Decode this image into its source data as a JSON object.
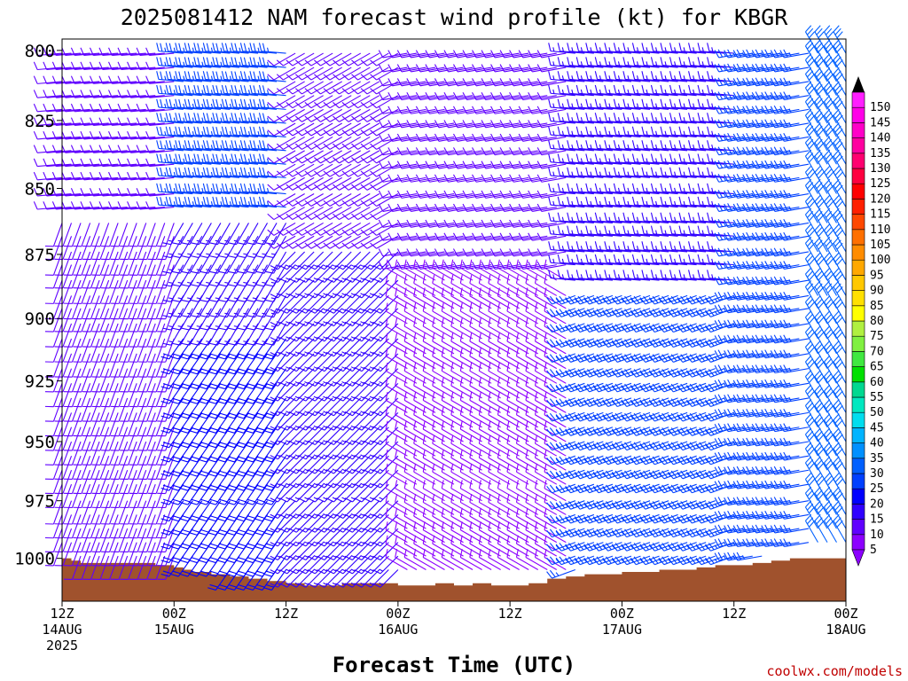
{
  "chart_data": {
    "type": "wind-barb time-height profile",
    "title": "2025081412 NAM forecast wind profile (kt) for KBGR",
    "xlabel": "Forecast Time (UTC)",
    "ylabel": "",
    "credit": "coolwx.com/models",
    "x_ticks": [
      {
        "label": "12Z",
        "date": "14AUG",
        "year": "2025",
        "hour": 0
      },
      {
        "label": "00Z",
        "date": "15AUG",
        "year": "",
        "hour": 12
      },
      {
        "label": "12Z",
        "date": "",
        "year": "",
        "hour": 24
      },
      {
        "label": "00Z",
        "date": "16AUG",
        "year": "",
        "hour": 36
      },
      {
        "label": "12Z",
        "date": "",
        "year": "",
        "hour": 48
      },
      {
        "label": "00Z",
        "date": "17AUG",
        "year": "",
        "hour": 60
      },
      {
        "label": "12Z",
        "date": "",
        "year": "",
        "hour": 72
      },
      {
        "label": "00Z",
        "date": "18AUG",
        "year": "",
        "hour": 84
      }
    ],
    "xlim_hours": [
      0,
      84
    ],
    "y_ticks": [
      800,
      825,
      850,
      875,
      900,
      925,
      950,
      975,
      1000
    ],
    "ylim_hpa": [
      796,
      1019
    ],
    "y_scale": "log-pressure",
    "colorbar": {
      "unit": "kt",
      "levels": [
        5,
        10,
        15,
        20,
        25,
        30,
        35,
        40,
        45,
        50,
        55,
        60,
        65,
        70,
        75,
        80,
        85,
        90,
        95,
        100,
        105,
        110,
        115,
        120,
        125,
        130,
        135,
        140,
        145,
        150
      ],
      "colors": [
        "#8c00ff",
        "#6000ff",
        "#3000ff",
        "#0000ff",
        "#0040ff",
        "#0060ff",
        "#0090ff",
        "#00b4ff",
        "#00ddee",
        "#00e8c0",
        "#00d890",
        "#00e000",
        "#40e840",
        "#80f040",
        "#b0f040",
        "#ffff00",
        "#ffe000",
        "#ffc800",
        "#ffa800",
        "#ff8c00",
        "#ff7000",
        "#ff4800",
        "#ff2000",
        "#ff0000",
        "#ff0040",
        "#ff0070",
        "#ff00a0",
        "#ff00c8",
        "#ff00e8",
        "#ff20ff"
      ],
      "position": "right"
    },
    "terrain": {
      "color": "#a0522d",
      "surface_pressure_hpa": [
        {
          "hour": 0,
          "p": 1000
        },
        {
          "hour": 1,
          "p": 1001
        },
        {
          "hour": 2,
          "p": 1002
        },
        {
          "hour": 4,
          "p": 1002
        },
        {
          "hour": 6,
          "p": 1002
        },
        {
          "hour": 8,
          "p": 1002
        },
        {
          "hour": 10,
          "p": 1003
        },
        {
          "hour": 12,
          "p": 1004
        },
        {
          "hour": 13,
          "p": 1005
        },
        {
          "hour": 14,
          "p": 1006
        },
        {
          "hour": 16,
          "p": 1007
        },
        {
          "hour": 18,
          "p": 1008
        },
        {
          "hour": 20,
          "p": 1009
        },
        {
          "hour": 22,
          "p": 1010
        },
        {
          "hour": 24,
          "p": 1011
        },
        {
          "hour": 26,
          "p": 1012
        },
        {
          "hour": 28,
          "p": 1012
        },
        {
          "hour": 30,
          "p": 1011
        },
        {
          "hour": 34,
          "p": 1011
        },
        {
          "hour": 36,
          "p": 1012
        },
        {
          "hour": 38,
          "p": 1012
        },
        {
          "hour": 40,
          "p": 1011
        },
        {
          "hour": 42,
          "p": 1012
        },
        {
          "hour": 44,
          "p": 1011
        },
        {
          "hour": 46,
          "p": 1012
        },
        {
          "hour": 48,
          "p": 1012
        },
        {
          "hour": 50,
          "p": 1011
        },
        {
          "hour": 52,
          "p": 1009
        },
        {
          "hour": 54,
          "p": 1008
        },
        {
          "hour": 56,
          "p": 1007
        },
        {
          "hour": 58,
          "p": 1007
        },
        {
          "hour": 60,
          "p": 1006
        },
        {
          "hour": 62,
          "p": 1006
        },
        {
          "hour": 64,
          "p": 1005
        },
        {
          "hour": 66,
          "p": 1005
        },
        {
          "hour": 68,
          "p": 1004
        },
        {
          "hour": 70,
          "p": 1003
        },
        {
          "hour": 72,
          "p": 1003
        },
        {
          "hour": 74,
          "p": 1002
        },
        {
          "hour": 76,
          "p": 1001
        },
        {
          "hour": 78,
          "p": 1000
        },
        {
          "hour": 80,
          "p": 1000
        },
        {
          "hour": 82,
          "p": 1000
        },
        {
          "hour": 84,
          "p": 1000
        }
      ]
    },
    "barb_levels_hpa": [
      801,
      806,
      811,
      816,
      821,
      826,
      831,
      836,
      841,
      846,
      852,
      857,
      863,
      868,
      874,
      879,
      885,
      891,
      896,
      902,
      908,
      914,
      920,
      926,
      932,
      938,
      944,
      950,
      956,
      962,
      968,
      975,
      981,
      987,
      993,
      999,
      1005,
      1011
    ],
    "wind_regimes": [
      {
        "h0": 0,
        "h1": 12,
        "p0": 800,
        "p1": 860,
        "dir": 265,
        "spd": 12
      },
      {
        "h0": 0,
        "h1": 12,
        "p0": 860,
        "p1": 1000,
        "dir": 200,
        "spd": 10
      },
      {
        "h0": 12,
        "h1": 24,
        "p0": 800,
        "p1": 860,
        "dir": 275,
        "spd": 25
      },
      {
        "h0": 12,
        "h1": 24,
        "p0": 860,
        "p1": 905,
        "dir": 210,
        "spd": 15
      },
      {
        "h0": 12,
        "h1": 24,
        "p0": 905,
        "p1": 1012,
        "dir": 215,
        "spd": 22
      },
      {
        "h0": 24,
        "h1": 36,
        "p0": 800,
        "p1": 870,
        "dir": 240,
        "spd": 12
      },
      {
        "h0": 24,
        "h1": 36,
        "p0": 870,
        "p1": 1012,
        "dir": 225,
        "spd": 15
      },
      {
        "h0": 36,
        "h1": 54,
        "p0": 800,
        "p1": 880,
        "dir": 260,
        "spd": 10
      },
      {
        "h0": 36,
        "h1": 54,
        "p0": 880,
        "p1": 1012,
        "dir": 300,
        "spd": 8
      },
      {
        "h0": 54,
        "h1": 72,
        "p0": 800,
        "p1": 885,
        "dir": 275,
        "spd": 15
      },
      {
        "h0": 54,
        "h1": 72,
        "p0": 885,
        "p1": 1008,
        "dir": 250,
        "spd": 25
      },
      {
        "h0": 72,
        "h1": 80,
        "p0": 800,
        "p1": 1003,
        "dir": 260,
        "spd": 25
      },
      {
        "h0": 80,
        "h1": 84,
        "p0": 800,
        "p1": 1001,
        "dir": 330,
        "spd": 30
      }
    ]
  }
}
